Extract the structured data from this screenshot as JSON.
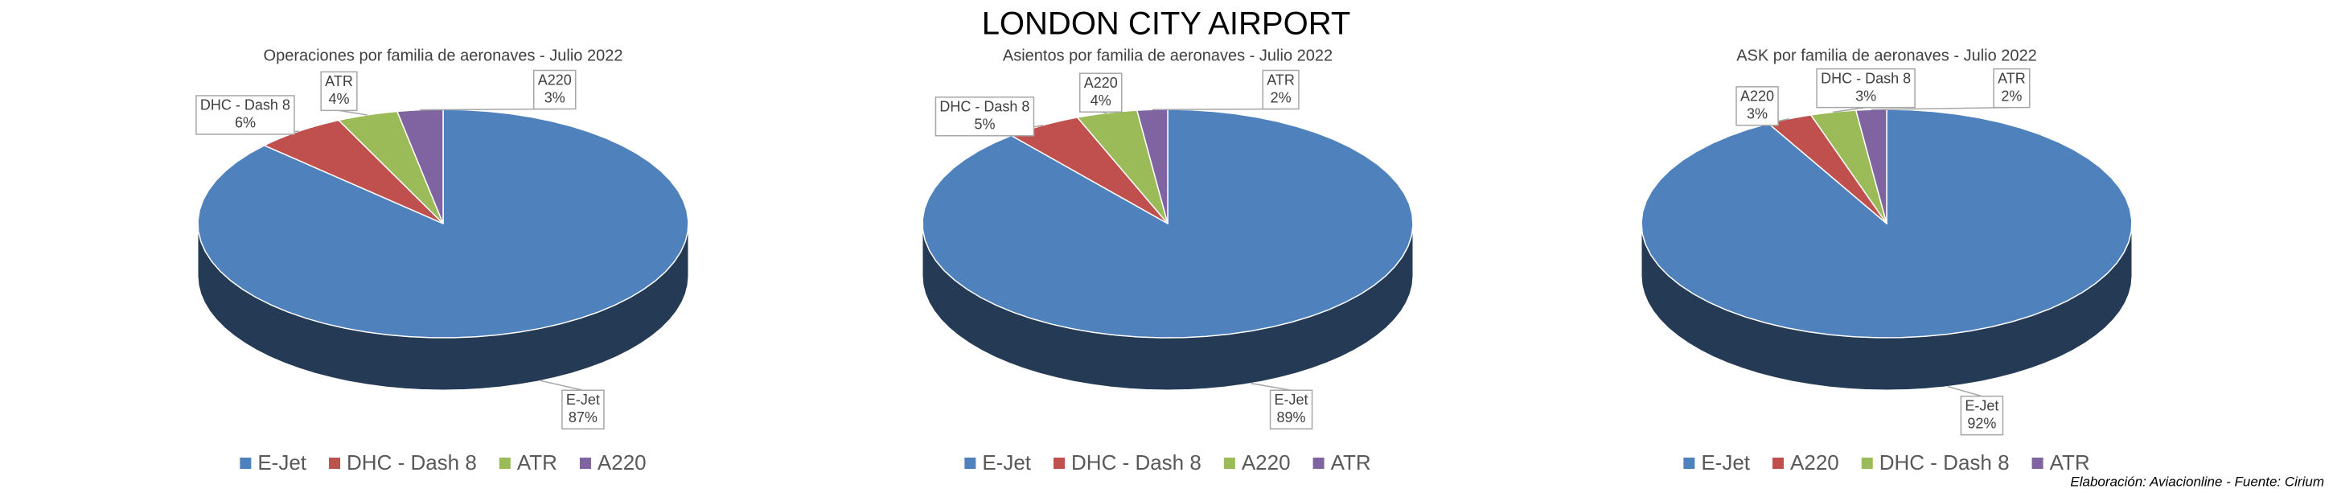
{
  "title": "LONDON CITY AIRPORT",
  "note": "Elaboración: Aviacionline - Fuente: Cirium",
  "chart_data": [
    {
      "type": "pie",
      "title": "Operaciones por familia de aeronaves - Julio 2022",
      "categories": [
        "E-Jet",
        "DHC - Dash 8",
        "ATR",
        "A220"
      ],
      "values": [
        87,
        6,
        4,
        3
      ],
      "value_labels": [
        "87%",
        "6%",
        "4%",
        "3%"
      ],
      "colors": [
        "#4f81bd",
        "#c0504d",
        "#9bbb59",
        "#8064a2"
      ],
      "legend": "bottom"
    },
    {
      "type": "pie",
      "title": "Asientos por familia de aeronaves - Julio 2022",
      "categories": [
        "E-Jet",
        "DHC - Dash 8",
        "A220",
        "ATR"
      ],
      "values": [
        89,
        5,
        4,
        2
      ],
      "value_labels": [
        "89%",
        "5%",
        "4%",
        "2%"
      ],
      "colors": [
        "#4f81bd",
        "#c0504d",
        "#9bbb59",
        "#8064a2"
      ],
      "legend": "bottom"
    },
    {
      "type": "pie",
      "title": "ASK por familia de aeronaves - Julio 2022",
      "categories": [
        "E-Jet",
        "A220",
        "DHC - Dash 8",
        "ATR"
      ],
      "values": [
        92,
        3,
        3,
        2
      ],
      "value_labels": [
        "92%",
        "3%",
        "3%",
        "2%"
      ],
      "colors": [
        "#4f81bd",
        "#c0504d",
        "#9bbb59",
        "#8064a2"
      ],
      "legend": "bottom"
    }
  ]
}
